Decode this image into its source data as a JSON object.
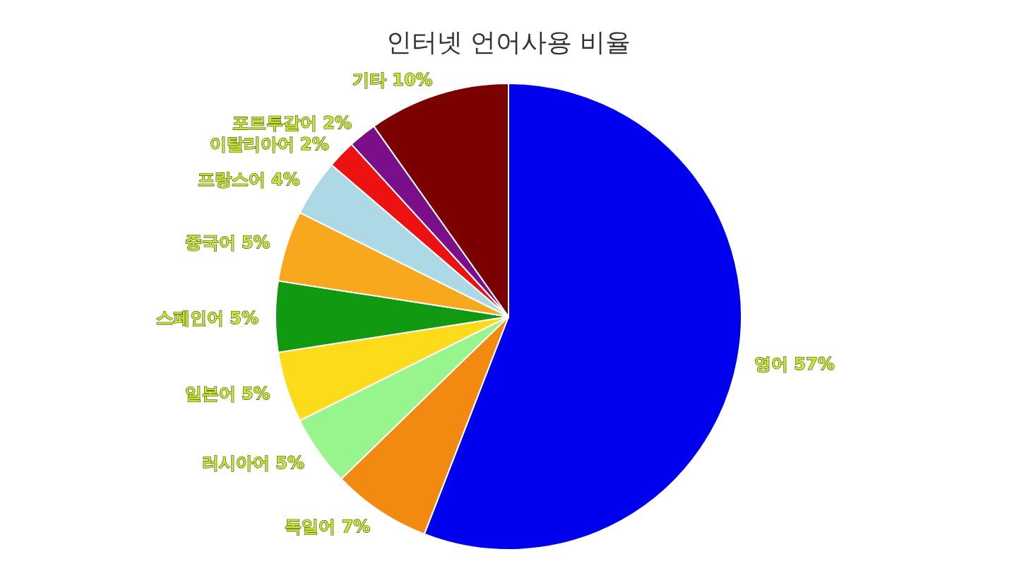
{
  "chart_data": {
    "type": "pie",
    "title": "인터넷 언어사용 비율",
    "categories": [
      "영어",
      "독일어",
      "러시아어",
      "일본어",
      "스페인어",
      "중국어",
      "프랑스어",
      "이탈리아어",
      "포르투갈어",
      "기타"
    ],
    "values": [
      57,
      7,
      5,
      5,
      5,
      5,
      4,
      2,
      2,
      10
    ],
    "value_labels": [
      "57%",
      "7%",
      "5%",
      "5%",
      "5%",
      "5%",
      "4%",
      "2%",
      "2%",
      "10%"
    ],
    "colors": [
      "#0000ee",
      "#f28a12",
      "#98f58e",
      "#fcdc1a",
      "#119911",
      "#f7a81c",
      "#add8e6",
      "#ee1111",
      "#7b0f8a",
      "#7b0000"
    ]
  }
}
